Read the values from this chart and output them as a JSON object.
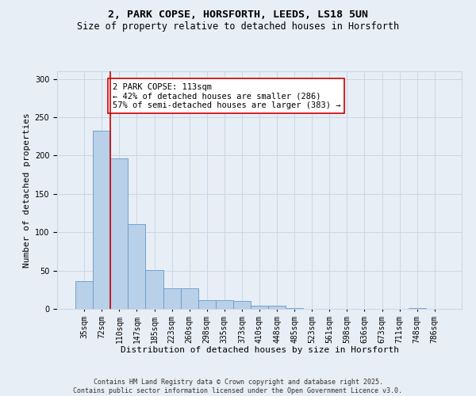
{
  "title1": "2, PARK COPSE, HORSFORTH, LEEDS, LS18 5UN",
  "title2": "Size of property relative to detached houses in Horsforth",
  "xlabel": "Distribution of detached houses by size in Horsforth",
  "ylabel": "Number of detached properties",
  "categories": [
    "35sqm",
    "72sqm",
    "110sqm",
    "147sqm",
    "185sqm",
    "223sqm",
    "260sqm",
    "298sqm",
    "335sqm",
    "373sqm",
    "410sqm",
    "448sqm",
    "485sqm",
    "523sqm",
    "561sqm",
    "598sqm",
    "636sqm",
    "673sqm",
    "711sqm",
    "748sqm",
    "786sqm"
  ],
  "values": [
    36,
    232,
    196,
    111,
    51,
    27,
    27,
    11,
    11,
    10,
    4,
    4,
    1,
    0,
    0,
    0,
    0,
    0,
    0,
    1,
    0
  ],
  "bar_color": "#b8d0e8",
  "bar_edge_color": "#6699cc",
  "vline_color": "#cc0000",
  "annotation_text": "2 PARK COPSE: 113sqm\n← 42% of detached houses are smaller (286)\n57% of semi-detached houses are larger (383) →",
  "annotation_box_color": "#ffffff",
  "annotation_box_edge": "#cc0000",
  "grid_color": "#c8d8e8",
  "background_color": "#e8eef5",
  "footer": "Contains HM Land Registry data © Crown copyright and database right 2025.\nContains public sector information licensed under the Open Government Licence v3.0.",
  "ylim": [
    0,
    310
  ],
  "title_fontsize": 9.5,
  "subtitle_fontsize": 8.5,
  "axis_label_fontsize": 8,
  "tick_fontsize": 7,
  "annotation_fontsize": 7.5,
  "footer_fontsize": 6
}
